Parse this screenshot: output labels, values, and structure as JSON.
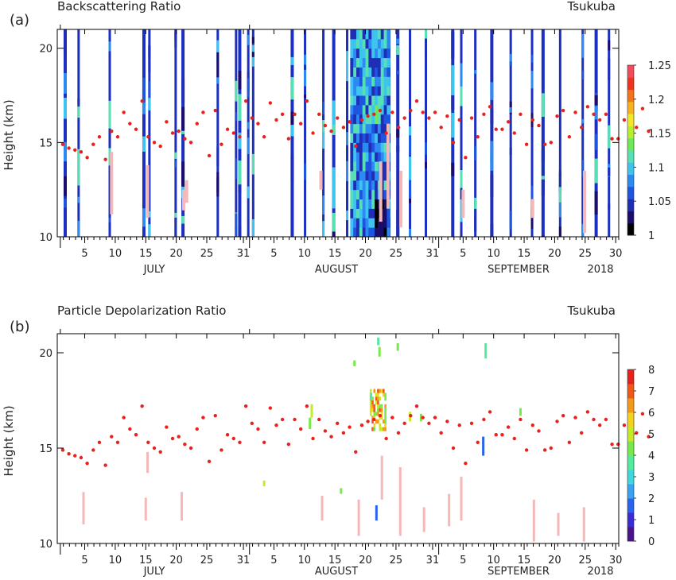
{
  "chart_data": [
    {
      "type": "heatmap",
      "panel_label": "(a)",
      "title": "Backscattering Ratio",
      "location": "Tsukuba",
      "ylabel": "Height (km)",
      "ylim": [
        10,
        21
      ],
      "yticks": [
        10,
        15,
        20
      ],
      "xlim": [
        "2018-06-30",
        "2018-09-30"
      ],
      "x_day_ticks": [
        "5",
        "10",
        "15",
        "20",
        "25",
        "31",
        "5",
        "10",
        "15",
        "20",
        "25",
        "31",
        "5",
        "10",
        "15",
        "20",
        "25",
        "30"
      ],
      "months": [
        "JULY",
        "AUGUST",
        "SEPTEMBER"
      ],
      "year": "2018",
      "colorbar": {
        "min": 1,
        "max": 1.25,
        "ticks": [
          "1",
          "1.05",
          "1.1",
          "1.15",
          "1.2",
          "1.25"
        ]
      },
      "tropopause_marker_color": "#e8211c"
    },
    {
      "type": "heatmap",
      "panel_label": "(b)",
      "title": "Particle Depolarization Ratio",
      "location": "Tsukuba",
      "ylabel": "Height (km)",
      "ylim": [
        10,
        21
      ],
      "yticks": [
        10,
        15,
        20
      ],
      "xlim": [
        "2018-06-30",
        "2018-09-30"
      ],
      "x_day_ticks": [
        "5",
        "10",
        "15",
        "20",
        "25",
        "31",
        "5",
        "10",
        "15",
        "20",
        "25",
        "31",
        "5",
        "10",
        "15",
        "20",
        "25",
        "30"
      ],
      "months": [
        "JULY",
        "AUGUST",
        "SEPTEMBER"
      ],
      "year": "2018",
      "colorbar": {
        "min": 0,
        "max": 8,
        "ticks": [
          "0",
          "1",
          "2",
          "3",
          "4",
          "5",
          "6",
          "7",
          "8"
        ]
      },
      "tropopause_marker_color": "#e8211c"
    }
  ],
  "tropopause_km": [
    14.9,
    14.7,
    14.6,
    14.5,
    14.2,
    14.9,
    15.3,
    14.1,
    15.6,
    15.3,
    16.6,
    16.0,
    15.7,
    17.2,
    15.3,
    15.0,
    14.8,
    16.1,
    15.5,
    15.6,
    15.2,
    15.0,
    16.0,
    16.6,
    14.3,
    16.7,
    14.9,
    15.7,
    15.5,
    15.3,
    17.2,
    16.3,
    16.0,
    15.3,
    17.1,
    16.2,
    16.5,
    15.2,
    16.5,
    16.0,
    17.2,
    15.5,
    16.5,
    15.9,
    15.6,
    16.3,
    15.8,
    16.1,
    14.8,
    16.2,
    16.4,
    16.5,
    16.7,
    15.5,
    16.6,
    15.8,
    16.3,
    16.7,
    17.2,
    16.6,
    16.3,
    16.6,
    15.8,
    16.4,
    15.0,
    16.2,
    14.2,
    16.3,
    15.3,
    16.5,
    16.9,
    15.7,
    15.7,
    16.1,
    15.5,
    16.5,
    14.9,
    16.2,
    15.9,
    14.9,
    15.0,
    16.4,
    16.7,
    15.3,
    16.6,
    15.8,
    16.9,
    16.5,
    16.2,
    16.5,
    15.2,
    15.2,
    16.2,
    16.0,
    15.8,
    16.8,
    15.6
  ]
}
